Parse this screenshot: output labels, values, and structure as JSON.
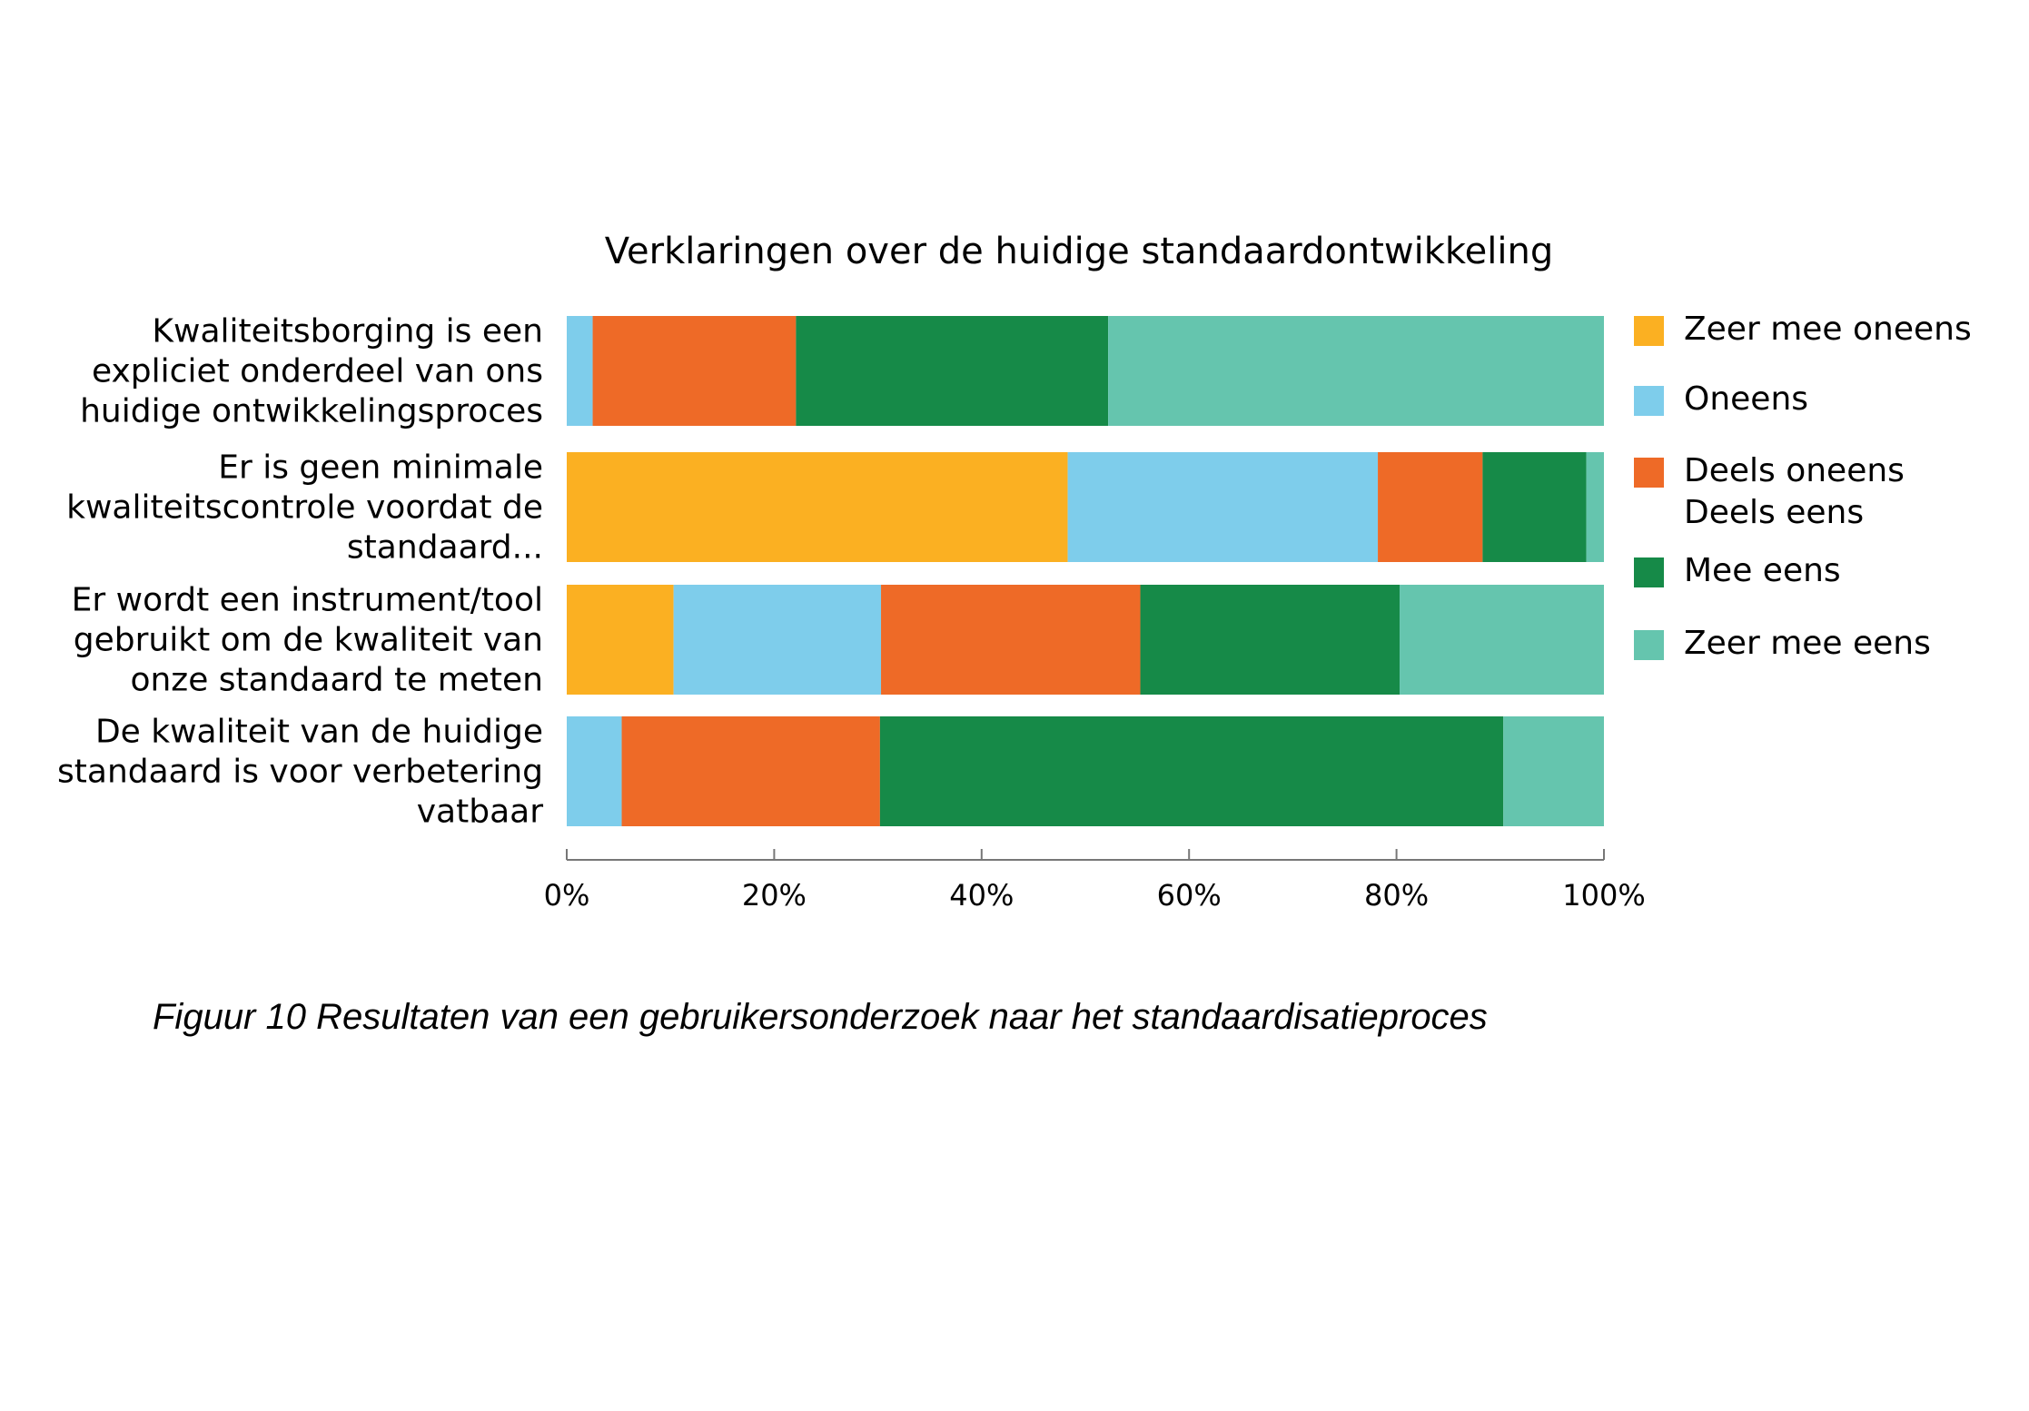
{
  "chart_data": {
    "type": "bar",
    "orientation": "horizontal",
    "stacked": true,
    "percent": true,
    "title": "Verklaringen over de huidige standaardontwikkeling",
    "categories": [
      [
        "Kwaliteitsborging is een",
        "expliciet onderdeel van ons",
        "huidige ontwikkelingsproces"
      ],
      [
        "Er is geen minimale",
        "kwaliteitscontrole voordat de",
        "standaard..."
      ],
      [
        "Er wordt een instrument/tool",
        "gebruikt om de kwaliteit van",
        "onze standaard te meten"
      ],
      [
        "De kwaliteit van de huidige",
        "standaard is voor verbetering",
        "vatbaar"
      ]
    ],
    "series": [
      {
        "name": "Zeer mee oneens",
        "color": "#FBB022",
        "values": [
          0,
          48.3,
          10.3,
          0
        ]
      },
      {
        "name": "Oneens",
        "color": "#7ECDEB",
        "values": [
          2.5,
          29.9,
          20.0,
          5.3
        ]
      },
      {
        "name": "Deels oneens Deels eens",
        "name_lines": [
          "Deels oneens",
          "Deels eens"
        ],
        "color": "#EE6A27",
        "values": [
          19.6,
          10.1,
          25.0,
          24.9
        ]
      },
      {
        "name": "Mee eens",
        "color": "#168A48",
        "values": [
          30.1,
          10.0,
          25.0,
          60.1
        ]
      },
      {
        "name": "Zeer mee eens",
        "color": "#65C5AE",
        "values": [
          47.8,
          1.7,
          19.7,
          9.7
        ]
      }
    ],
    "xlim": [
      0,
      100
    ],
    "xticks": [
      "0%",
      "20%",
      "40%",
      "60%",
      "80%",
      "100%"
    ],
    "legend_position": "right",
    "grid": false
  },
  "caption": "Figuur 10 Resultaten van een gebruikersonderzoek naar het standaardisatieproces"
}
